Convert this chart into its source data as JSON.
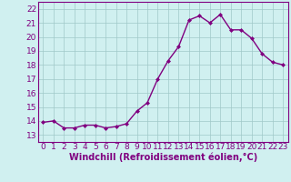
{
  "x": [
    0,
    1,
    2,
    3,
    4,
    5,
    6,
    7,
    8,
    9,
    10,
    11,
    12,
    13,
    14,
    15,
    16,
    17,
    18,
    19,
    20,
    21,
    22,
    23
  ],
  "y": [
    13.9,
    14.0,
    13.5,
    13.5,
    13.7,
    13.7,
    13.5,
    13.6,
    13.8,
    14.7,
    15.3,
    17.0,
    18.3,
    19.3,
    21.2,
    21.5,
    21.0,
    21.6,
    20.5,
    20.5,
    19.9,
    18.8,
    18.2,
    18.0
  ],
  "line_color": "#800080",
  "marker": "D",
  "marker_size": 2,
  "bg_color": "#d0f0f0",
  "grid_color": "#a0c8c8",
  "xlabel": "Windchill (Refroidissement éolien,°C)",
  "ylim": [
    12.5,
    22.5
  ],
  "xlim": [
    -0.5,
    23.5
  ],
  "yticks": [
    13,
    14,
    15,
    16,
    17,
    18,
    19,
    20,
    21,
    22
  ],
  "xticks": [
    0,
    1,
    2,
    3,
    4,
    5,
    6,
    7,
    8,
    9,
    10,
    11,
    12,
    13,
    14,
    15,
    16,
    17,
    18,
    19,
    20,
    21,
    22,
    23
  ],
  "line_color_hex": "#800080",
  "tick_color": "#800080",
  "font_size": 6.5,
  "xlabel_fontsize": 7.0,
  "linewidth": 1.0
}
